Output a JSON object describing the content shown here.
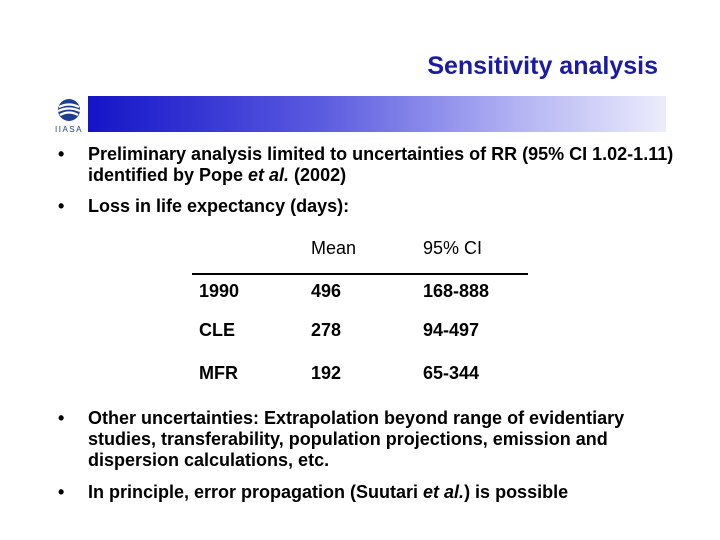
{
  "slide": {
    "title": "Sensitivity analysis",
    "logo_text": "IIASA",
    "bullets": [
      {
        "parts": [
          "Preliminary analysis limited to uncertainties of RR (95% CI 1.02-1.11)  identified by Pope ",
          "et al.",
          " (2002)"
        ]
      },
      {
        "text": "Loss in life expectancy (days):"
      },
      {
        "text": "Other uncertainties: Extrapolation beyond range of evidentiary studies, transferability, population projections, emission and dispersion calculations, etc."
      },
      {
        "parts": [
          "In principle, error propagation (Suutari ",
          "et al.",
          ") is possible"
        ]
      }
    ],
    "table": {
      "headers": [
        "Mean",
        "95% CI"
      ],
      "rows": [
        {
          "label": "1990",
          "mean": "496",
          "ci": "168-888"
        },
        {
          "label": "CLE",
          "mean": "278",
          "ci": "94-497"
        },
        {
          "label": "MFR",
          "mean": "192",
          "ci": "65-344"
        }
      ]
    },
    "colors": {
      "title": "#1a1aa6",
      "bar_start": "#1414c8",
      "bar_end": "#ececfc"
    }
  }
}
